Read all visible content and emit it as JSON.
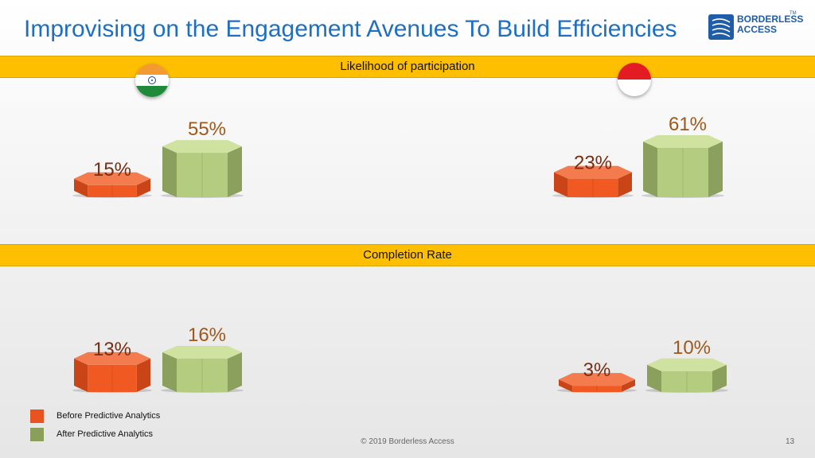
{
  "title": "Improvising on the Engagement Avenues To Build Efficiencies",
  "logo": {
    "line1": "BORDERLESS",
    "line2": "ACCESS",
    "tm": "TM"
  },
  "chart_data": [
    {
      "type": "bar",
      "title": "Likelihood of participation",
      "groups": [
        {
          "flag": "india-flag-icon",
          "before": 15,
          "after": 55,
          "before_label": "15%",
          "after_label": "55%"
        },
        {
          "flag": "indonesia-flag-icon",
          "before": 23,
          "after": 61,
          "before_label": "23%",
          "after_label": "61%"
        }
      ]
    },
    {
      "type": "bar",
      "title": "Completion Rate",
      "groups": [
        {
          "before": 13,
          "after": 16,
          "before_label": "13%",
          "after_label": "16%"
        },
        {
          "before": 3,
          "after": 10,
          "before_label": "3%",
          "after_label": "10%"
        }
      ]
    }
  ],
  "legend": {
    "before": {
      "label": "Before Predictive Analytics",
      "color": "#e8531f"
    },
    "after": {
      "label": "After Predictive Analytics",
      "color": "#8a9f5a"
    }
  },
  "colors": {
    "before_front": "#f05a22",
    "before_side": "#c94416",
    "before_top": "#f47b4e",
    "after_front": "#b3cc80",
    "after_side": "#8aa05c",
    "after_top": "#cfe29f",
    "before_label": "#7a2d10",
    "after_label": "#a0581a"
  },
  "footer": "© 2019 Borderless Access",
  "page_number": "13"
}
